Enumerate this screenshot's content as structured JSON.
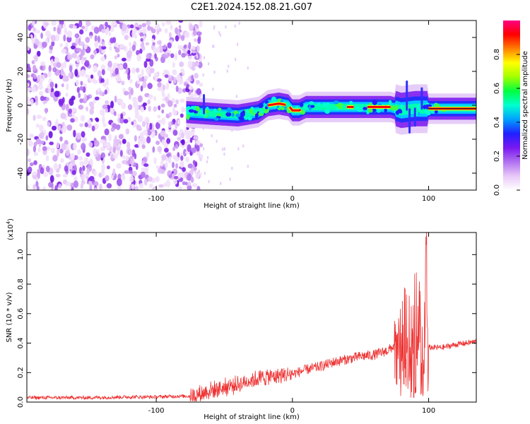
{
  "title": "C2E1.2024.152.08.21.G07",
  "chart_data": [
    {
      "type": "heatmap",
      "xlabel": "Height of straight line (km)",
      "ylabel": "Frequency (Hz)",
      "xlim": [
        -195,
        135
      ],
      "ylim": [
        -50,
        50
      ],
      "x_ticks": [
        -100,
        0,
        100
      ],
      "x_tick_labels": [
        "-100",
        "0",
        "100"
      ],
      "y_ticks": [
        -40,
        -20,
        0,
        20,
        40
      ],
      "y_tick_labels": [
        "-40",
        "-20",
        "0",
        "20",
        "40"
      ],
      "noise_region_x": [
        -195,
        -73
      ],
      "signal_start_x": -78,
      "signal_ridge": [
        {
          "x": -78,
          "f": -4
        },
        {
          "x": -60,
          "f": -5
        },
        {
          "x": -40,
          "f": -6
        },
        {
          "x": -25,
          "f": -4
        },
        {
          "x": -18,
          "f": 0
        },
        {
          "x": -10,
          "f": 1
        },
        {
          "x": -3,
          "f": 0
        },
        {
          "x": 0,
          "f": -3
        },
        {
          "x": 5,
          "f": -3
        },
        {
          "x": 10,
          "f": -1
        },
        {
          "x": 30,
          "f": -1
        },
        {
          "x": 60,
          "f": -1
        },
        {
          "x": 72,
          "f": -1
        },
        {
          "x": 80,
          "f": -3
        },
        {
          "x": 90,
          "f": -2
        },
        {
          "x": 100,
          "f": -2
        },
        {
          "x": 135,
          "f": -2
        }
      ],
      "colorbar": {
        "label": "Normalized spectral amplitude",
        "range": [
          0,
          1
        ],
        "ticks": [
          0.0,
          0.2,
          0.4,
          0.6,
          0.8
        ],
        "tick_labels": [
          "0.0",
          "0.2",
          "0.4",
          "0.6",
          "0.8"
        ],
        "colors": [
          "#ffffff",
          "#e8c8f8",
          "#b070f0",
          "#7a18f0",
          "#2020ff",
          "#00a0ff",
          "#00ffd0",
          "#00ff40",
          "#a0ff00",
          "#ffff00",
          "#ff8000",
          "#ff0000",
          "#ff0080"
        ]
      },
      "grid": false
    },
    {
      "type": "line",
      "xlabel": "Height of straight line (km)",
      "ylabel": "SNR (10 * v/v)",
      "scale_label": "(x10",
      "scale_exponent": "4",
      "xlim": [
        -195,
        135
      ],
      "ylim": [
        0,
        1.15
      ],
      "x_ticks": [
        -100,
        0,
        100
      ],
      "x_tick_labels": [
        "-100",
        "0",
        "100"
      ],
      "y_ticks": [
        0.0,
        0.2,
        0.4,
        0.6,
        0.8,
        1.0
      ],
      "y_tick_labels": [
        "0.0",
        "0.2",
        "0.4",
        "0.6",
        "0.8",
        "1.0"
      ],
      "series": [
        {
          "color": "#ee3333",
          "x": [
            -195,
            -170,
            -150,
            -120,
            -100,
            -85,
            -75,
            -70,
            -60,
            -50,
            -40,
            -30,
            -20,
            -10,
            0,
            10,
            20,
            30,
            40,
            50,
            60,
            70,
            75,
            80,
            85,
            90,
            95,
            98,
            100,
            110,
            120,
            135
          ],
          "y": [
            0.03,
            0.03,
            0.03,
            0.035,
            0.035,
            0.04,
            0.04,
            0.05,
            0.08,
            0.1,
            0.12,
            0.15,
            0.17,
            0.18,
            0.19,
            0.22,
            0.24,
            0.27,
            0.29,
            0.31,
            0.32,
            0.35,
            0.38,
            0.45,
            0.55,
            0.75,
            0.9,
            1.15,
            0.37,
            0.37,
            0.39,
            0.41
          ]
        }
      ],
      "grid": false
    }
  ]
}
